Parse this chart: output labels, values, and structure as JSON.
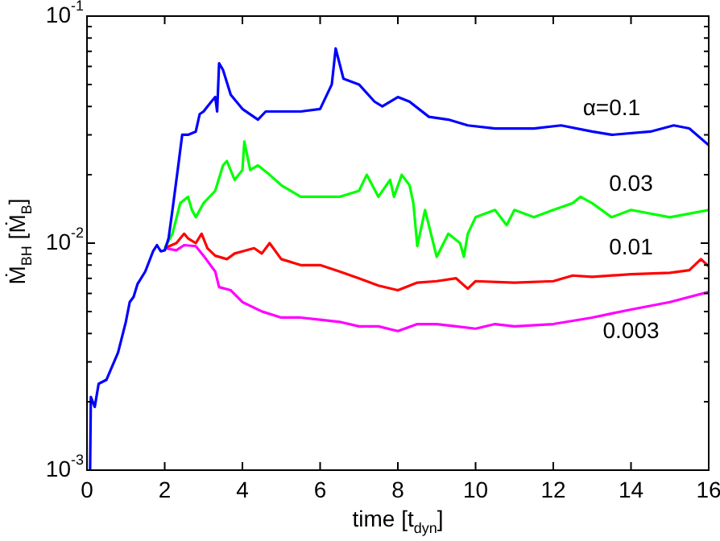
{
  "chart_data": {
    "type": "line",
    "xlabel": "time [t$_{dyn}$]",
    "ylabel": "Ṁ$_{BH}$ [Ṁ$_{B}$]",
    "log": "y",
    "grid": false,
    "legend": false,
    "marker": "none",
    "line_style": "solid",
    "xlim": [
      0,
      16
    ],
    "xticks": [
      0,
      2,
      4,
      6,
      8,
      10,
      12,
      14,
      16
    ],
    "ylim": [
      0.001,
      0.1
    ],
    "yticks": [
      {
        "value": 0.001,
        "label": "10$^{-3}$"
      },
      {
        "value": 0.002,
        "label": null
      },
      {
        "value": 0.003,
        "label": null
      },
      {
        "value": 0.004,
        "label": null
      },
      {
        "value": 0.005,
        "label": null
      },
      {
        "value": 0.006,
        "label": null
      },
      {
        "value": 0.007,
        "label": null
      },
      {
        "value": 0.008,
        "label": null
      },
      {
        "value": 0.009,
        "label": null
      },
      {
        "value": 0.01,
        "label": "10$^{-2}$"
      },
      {
        "value": 0.02,
        "label": null
      },
      {
        "value": 0.03,
        "label": null
      },
      {
        "value": 0.04,
        "label": null
      },
      {
        "value": 0.05,
        "label": null
      },
      {
        "value": 0.06,
        "label": null
      },
      {
        "value": 0.07,
        "label": null
      },
      {
        "value": 0.08,
        "label": null
      },
      {
        "value": 0.09,
        "label": null
      },
      {
        "value": 0.1,
        "label": "10$^{-1}$"
      }
    ],
    "series": [
      {
        "name": "α=0.1",
        "color": "#0000ff",
        "x": [
          0.08,
          0.1,
          0.2,
          0.3,
          0.5,
          0.8,
          1.0,
          1.1,
          1.2,
          1.3,
          1.5,
          1.7,
          1.8,
          1.9,
          2.0,
          2.1,
          2.2,
          2.35,
          2.45,
          2.6,
          2.8,
          2.9,
          3.0,
          3.2,
          3.3,
          3.35,
          3.4,
          3.5,
          3.7,
          4.0,
          4.4,
          4.6,
          5.0,
          5.5,
          6.0,
          6.3,
          6.4,
          6.6,
          7.0,
          7.4,
          7.6,
          8.0,
          8.3,
          8.8,
          9.3,
          9.8,
          10.5,
          11.5,
          12.2,
          13.0,
          13.5,
          14.5,
          15.1,
          15.5,
          16.0
        ],
        "values": [
          0.001,
          0.0021,
          0.0019,
          0.0024,
          0.0025,
          0.0033,
          0.0045,
          0.0055,
          0.0058,
          0.0066,
          0.0075,
          0.0092,
          0.0098,
          0.0092,
          0.0093,
          0.0105,
          0.014,
          0.022,
          0.03,
          0.03,
          0.031,
          0.037,
          0.038,
          0.042,
          0.044,
          0.038,
          0.062,
          0.058,
          0.045,
          0.039,
          0.035,
          0.038,
          0.038,
          0.038,
          0.039,
          0.05,
          0.072,
          0.053,
          0.05,
          0.042,
          0.04,
          0.044,
          0.042,
          0.036,
          0.035,
          0.033,
          0.032,
          0.032,
          0.033,
          0.031,
          0.03,
          0.031,
          0.033,
          0.032,
          0.027
        ]
      },
      {
        "name": "0.03",
        "color": "#00ff00",
        "x": [
          2.0,
          2.2,
          2.4,
          2.6,
          2.7,
          2.8,
          3.0,
          3.3,
          3.5,
          3.6,
          3.8,
          4.0,
          4.05,
          4.2,
          4.4,
          4.7,
          5.0,
          5.5,
          6.0,
          6.5,
          7.0,
          7.2,
          7.5,
          7.8,
          7.9,
          8.1,
          8.3,
          8.4,
          8.5,
          8.7,
          9.0,
          9.3,
          9.6,
          9.7,
          9.8,
          10.0,
          10.5,
          10.8,
          11.0,
          11.5,
          12.0,
          12.5,
          12.7,
          13.0,
          13.5,
          14.0,
          15.0,
          16.0
        ],
        "values": [
          0.0095,
          0.011,
          0.015,
          0.016,
          0.014,
          0.013,
          0.015,
          0.017,
          0.022,
          0.023,
          0.019,
          0.021,
          0.028,
          0.021,
          0.022,
          0.02,
          0.018,
          0.016,
          0.016,
          0.016,
          0.017,
          0.02,
          0.016,
          0.019,
          0.016,
          0.02,
          0.018,
          0.015,
          0.0097,
          0.014,
          0.0087,
          0.011,
          0.01,
          0.0087,
          0.011,
          0.013,
          0.014,
          0.012,
          0.014,
          0.013,
          0.014,
          0.015,
          0.016,
          0.015,
          0.013,
          0.014,
          0.013,
          0.014
        ]
      },
      {
        "name": "0.01",
        "color": "#ff0000",
        "x": [
          2.0,
          2.3,
          2.5,
          2.6,
          2.8,
          2.95,
          3.1,
          3.3,
          3.6,
          3.8,
          4.0,
          4.3,
          4.5,
          4.7,
          5.0,
          5.5,
          6.0,
          6.5,
          7.0,
          7.5,
          8.0,
          8.5,
          9.0,
          9.5,
          9.8,
          10.0,
          11.0,
          12.0,
          12.5,
          13.0,
          14.0,
          15.0,
          15.5,
          15.8,
          16.0
        ],
        "values": [
          0.0095,
          0.01,
          0.011,
          0.0105,
          0.01,
          0.011,
          0.0095,
          0.0088,
          0.0085,
          0.009,
          0.0092,
          0.0095,
          0.009,
          0.01,
          0.0085,
          0.008,
          0.008,
          0.0075,
          0.007,
          0.0065,
          0.0062,
          0.0067,
          0.0068,
          0.007,
          0.0063,
          0.0068,
          0.0067,
          0.0068,
          0.0072,
          0.0071,
          0.0073,
          0.0074,
          0.0076,
          0.0085,
          0.0079
        ]
      },
      {
        "name": "0.003",
        "color": "#ff00ff",
        "x": [
          2.0,
          2.3,
          2.5,
          2.8,
          3.0,
          3.3,
          3.4,
          3.7,
          4.0,
          4.5,
          5.0,
          5.5,
          6.0,
          6.5,
          7.0,
          7.5,
          8.0,
          8.5,
          9.0,
          9.5,
          10.0,
          10.5,
          11.0,
          12.0,
          13.0,
          14.0,
          15.0,
          16.0
        ],
        "values": [
          0.0095,
          0.0093,
          0.0098,
          0.0097,
          0.0088,
          0.0075,
          0.0064,
          0.0062,
          0.0055,
          0.005,
          0.0047,
          0.0047,
          0.0046,
          0.0045,
          0.0043,
          0.0043,
          0.0041,
          0.0044,
          0.0044,
          0.0043,
          0.0042,
          0.0044,
          0.0043,
          0.0044,
          0.0047,
          0.0051,
          0.0055,
          0.0061
        ]
      }
    ]
  }
}
